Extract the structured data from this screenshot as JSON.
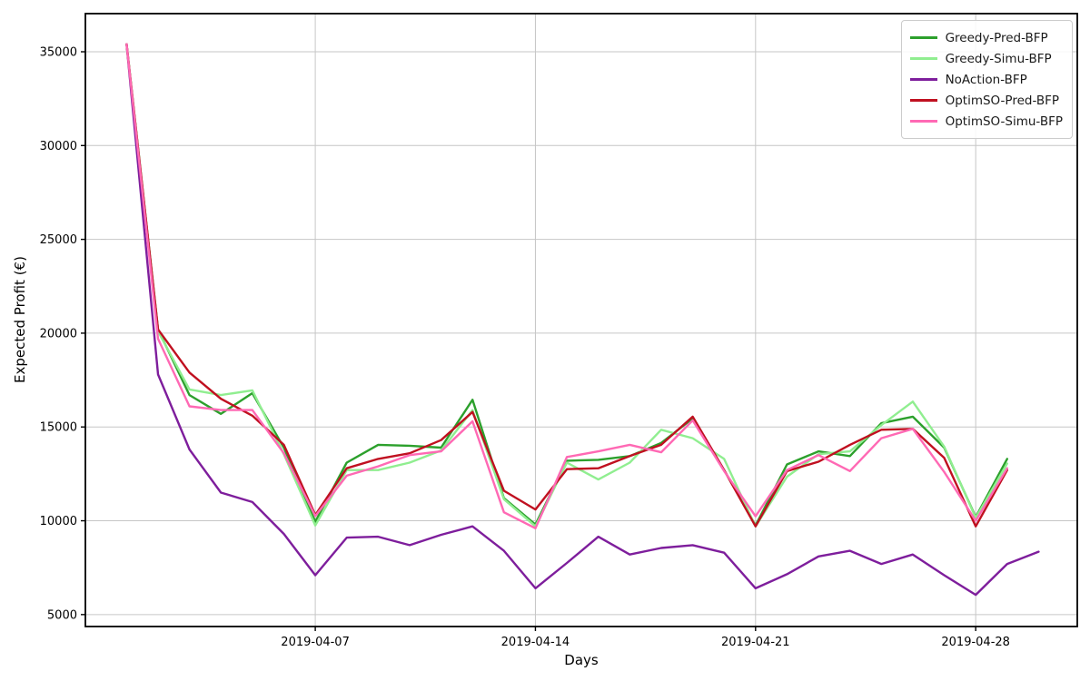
{
  "chart_data": {
    "type": "line",
    "xlabel": "Days",
    "ylabel": "Expected Profit (€)",
    "grid": true,
    "legend_position": "top-right",
    "xlim_days": [
      -0.31,
      31.23
    ],
    "ylim": [
      4363,
      37033
    ],
    "y_ticks": [
      5000,
      10000,
      15000,
      20000,
      25000,
      30000,
      35000
    ],
    "x_ticks": [
      {
        "day": 7,
        "label": "2019-04-07"
      },
      {
        "day": 14,
        "label": "2019-04-14"
      },
      {
        "day": 21,
        "label": "2019-04-21"
      },
      {
        "day": 28,
        "label": "2019-04-28"
      }
    ],
    "dates": [
      "2019-04-01",
      "2019-04-02",
      "2019-04-03",
      "2019-04-04",
      "2019-04-05",
      "2019-04-06",
      "2019-04-07",
      "2019-04-08",
      "2019-04-09",
      "2019-04-10",
      "2019-04-11",
      "2019-04-12",
      "2019-04-13",
      "2019-04-14",
      "2019-04-15",
      "2019-04-16",
      "2019-04-17",
      "2019-04-18",
      "2019-04-19",
      "2019-04-20",
      "2019-04-21",
      "2019-04-22",
      "2019-04-23",
      "2019-04-24",
      "2019-04-25",
      "2019-04-26",
      "2019-04-27",
      "2019-04-28",
      "2019-04-29",
      "2019-04-30"
    ],
    "series": [
      {
        "name": "Greedy-Pred-BFP",
        "color": "#2ca02c",
        "values": [
          35400,
          20200,
          16700,
          15700,
          16800,
          13900,
          9950,
          13100,
          14050,
          14000,
          13900,
          16450,
          11200,
          9800,
          13200,
          13250,
          13450,
          14150,
          15450,
          12700,
          9750,
          13000,
          13700,
          13450,
          15200,
          15550,
          13900,
          10200,
          13300
        ]
      },
      {
        "name": "Greedy-Simu-BFP",
        "color": "#90ee90",
        "values": [
          35400,
          20100,
          17000,
          16700,
          16950,
          13550,
          9750,
          12700,
          12700,
          13100,
          13750,
          15900,
          11150,
          9700,
          13100,
          12200,
          13100,
          14850,
          14400,
          13300,
          9700,
          12350,
          13550,
          13700,
          15100,
          16350,
          13950,
          10150,
          13050
        ]
      },
      {
        "name": "NoAction-BFP",
        "color": "#7e1e9c",
        "values": [
          35400,
          17800,
          13800,
          11500,
          11000,
          9300,
          7100,
          9100,
          9150,
          8700,
          9250,
          9700,
          8400,
          6400,
          7750,
          9150,
          8200,
          8550,
          8700,
          8300,
          6400,
          7150,
          8100,
          8400,
          7700,
          8200,
          7100,
          6050,
          7700,
          8350
        ]
      },
      {
        "name": "OptimSO-Pred-BFP",
        "color": "#c01020",
        "values": [
          35400,
          20200,
          17900,
          16500,
          15600,
          14050,
          10300,
          12800,
          13300,
          13600,
          14300,
          15800,
          11600,
          10600,
          12750,
          12800,
          13450,
          14050,
          15550,
          12700,
          9700,
          12650,
          13150,
          14050,
          14850,
          14900,
          13350,
          9700,
          12700
        ]
      },
      {
        "name": "OptimSO-Simu-BFP",
        "color": "#ff69b4",
        "values": [
          35400,
          19700,
          16100,
          15900,
          15900,
          13600,
          10250,
          12400,
          12900,
          13500,
          13700,
          15300,
          10450,
          9600,
          13400,
          13700,
          14050,
          13650,
          15350,
          12650,
          10240,
          12700,
          13500,
          12650,
          14400,
          14900,
          12600,
          10000,
          12800
        ]
      }
    ]
  }
}
